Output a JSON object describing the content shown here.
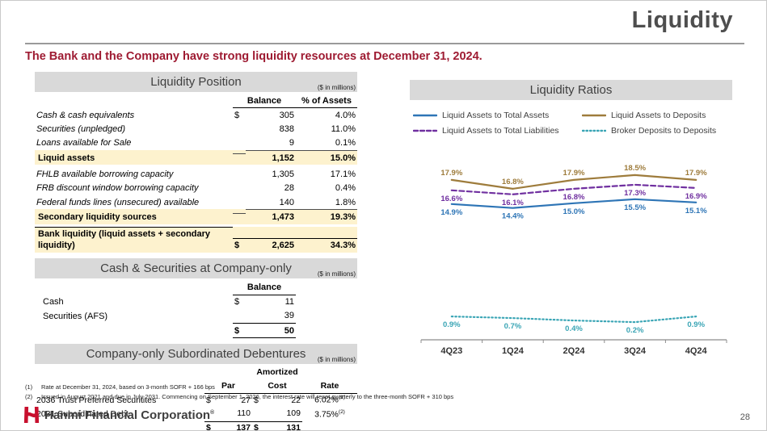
{
  "page": {
    "title": "Liquidity",
    "subtitle": "The Bank and the Company have strong liquidity resources at December 31, 2024.",
    "page_number": "28",
    "brand": "Hanmi Financial Corporation",
    "brand_mark": "®"
  },
  "colors": {
    "subtitle_red": "#9e1b32",
    "brand_red": "#c8102e",
    "highlight_yellow": "#fdf2ce",
    "header_bar_gray": "#d9d9d9"
  },
  "liquidity_position": {
    "title": "Liquidity Position",
    "units": "($ in millions)",
    "columns": {
      "balance": "Balance",
      "pct": "% of Assets"
    },
    "rows": [
      {
        "label": "Cash & cash equivalents",
        "dollar": "$",
        "balance": "305",
        "pct": "4.0%",
        "style": "detail"
      },
      {
        "label": "Securities (unpledged)",
        "dollar": "",
        "balance": "838",
        "pct": "11.0%",
        "style": "detail"
      },
      {
        "label": "Loans available for Sale",
        "dollar": "",
        "balance": "9",
        "pct": "0.1%",
        "style": "detail"
      },
      {
        "label": "Liquid assets",
        "dollar": "",
        "balance": "1,152",
        "pct": "15.0%",
        "style": "subtotal"
      },
      {
        "label": "FHLB available borrowing capacity",
        "dollar": "",
        "balance": "1,305",
        "pct": "17.1%",
        "style": "detail"
      },
      {
        "label": "FRB discount window borrowing capacity",
        "dollar": "",
        "balance": "28",
        "pct": "0.4%",
        "style": "detail"
      },
      {
        "label": "Federal funds lines (unsecured) available",
        "dollar": "",
        "balance": "140",
        "pct": "1.8%",
        "style": "detail"
      },
      {
        "label": "Secondary liquidity sources",
        "dollar": "",
        "balance": "1,473",
        "pct": "19.3%",
        "style": "subtotal"
      },
      {
        "label": "Bank liquidity (liquid assets + secondary liquidity)",
        "dollar": "$",
        "balance": "2,625",
        "pct": "34.3%",
        "style": "total"
      }
    ]
  },
  "company_cash": {
    "title": "Cash & Securities at Company-only",
    "units": "($ in millions)",
    "columns": {
      "balance": "Balance"
    },
    "rows": [
      {
        "label": "Cash",
        "dollar": "$",
        "balance": "11",
        "style": "detail"
      },
      {
        "label": "Securities (AFS)",
        "dollar": "",
        "balance": "39",
        "style": "detail cunderline"
      },
      {
        "label": "",
        "dollar": "$",
        "balance": "50",
        "style": "ctotal"
      }
    ]
  },
  "sub_debentures": {
    "title": "Company-only Subordinated Debentures",
    "units": "($ in millions)",
    "columns": {
      "amortized": "Amortized",
      "par": "Par",
      "cost": "Cost",
      "rate": "Rate"
    },
    "rows": [
      {
        "label": "2036 Trust Preferred Securitites",
        "d1": "$",
        "par": "27",
        "d2": "$",
        "cost": "22",
        "rate": "6.02%",
        "note": "(1)",
        "style": "detail"
      },
      {
        "label": "2031 Subordinated Debt",
        "d1": "",
        "par": "110",
        "d2": "",
        "cost": "109",
        "rate": "3.75%",
        "note": "(2)",
        "style": "detail dunderline"
      },
      {
        "label": "",
        "d1": "$",
        "par": "137",
        "d2": "$",
        "cost": "131",
        "rate": "",
        "note": "",
        "style": "dtotal"
      }
    ]
  },
  "footnotes": [
    {
      "num": "(1)",
      "text": "Rate at December 31, 2024, based on 3-month SOFR + 166 bps"
    },
    {
      "num": "(2)",
      "text": "Issued in August 2021 and due in July 2031. Commencing on September 1, 2026, the interest rate will reset quarterly to the three-month SOFR + 310 bps"
    }
  ],
  "chart_data": {
    "type": "line",
    "title": "Liquidity Ratios",
    "categories": [
      "4Q23",
      "1Q24",
      "2Q24",
      "3Q24",
      "4Q24"
    ],
    "series": [
      {
        "name": "Liquid Assets to Total Assets",
        "values": [
          14.9,
          14.4,
          15.0,
          15.5,
          15.1
        ],
        "color": "#2e75b6",
        "dash": "solid",
        "label_pos": "below"
      },
      {
        "name": "Liquid Assets to Deposits",
        "values": [
          17.9,
          16.8,
          17.9,
          18.5,
          17.9
        ],
        "color": "#9e7c3c",
        "dash": "solid",
        "label_pos": "above"
      },
      {
        "name": "Liquid Assets to Total Liabilities",
        "values": [
          16.6,
          16.1,
          16.8,
          17.3,
          16.9
        ],
        "color": "#7030a0",
        "dash": "dashed",
        "label_pos": "below"
      },
      {
        "name": "Broker Deposits to Deposits",
        "values": [
          0.9,
          0.7,
          0.4,
          0.2,
          0.9
        ],
        "color": "#3aa5b5",
        "dash": "dotted",
        "label_pos": "below"
      }
    ],
    "ylim": [
      -2,
      20
    ],
    "grid": false,
    "legend_position": "top",
    "value_format": "0.0%",
    "xlabel": "",
    "ylabel": ""
  }
}
